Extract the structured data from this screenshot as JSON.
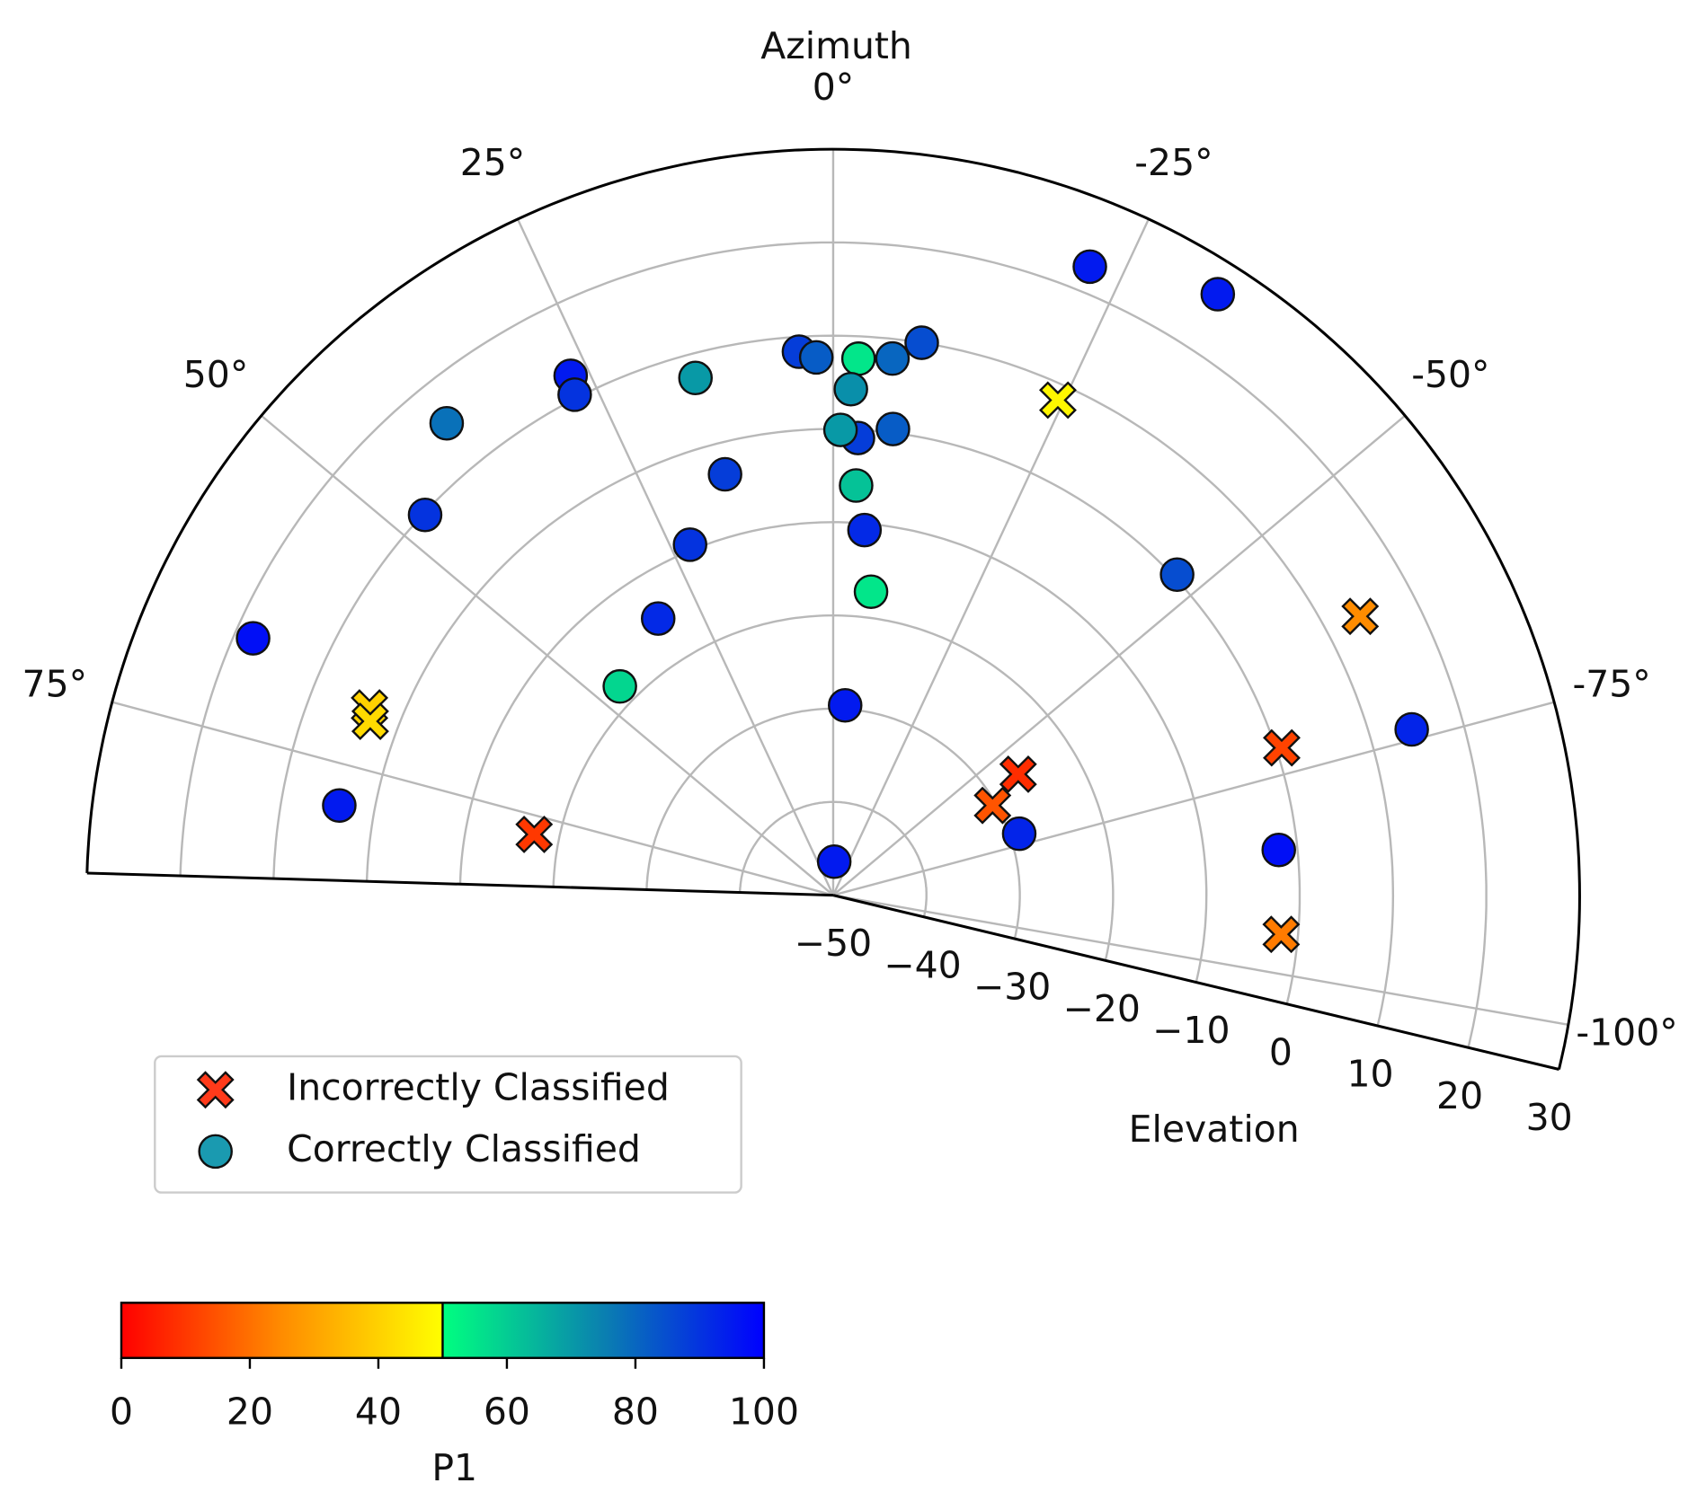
{
  "chart_data": {
    "type": "polar-scatter",
    "theta_label": "Azimuth",
    "r_label": "Elevation",
    "thetalim": [
      -103.5,
      88.3
    ],
    "thetaticks": [
      {
        "value": 0,
        "label": "0°"
      },
      {
        "value": 25,
        "label": "25°"
      },
      {
        "value": 50,
        "label": "50°"
      },
      {
        "value": 75,
        "label": "75°"
      },
      {
        "value": -25,
        "label": "-25°"
      },
      {
        "value": -50,
        "label": "-50°"
      },
      {
        "value": -75,
        "label": "-75°"
      },
      {
        "value": -100,
        "label": "-100°"
      }
    ],
    "rlim": [
      -50,
      30
    ],
    "rticks": [
      {
        "value": -50,
        "label": "−50"
      },
      {
        "value": -40,
        "label": "−40"
      },
      {
        "value": -30,
        "label": "−30"
      },
      {
        "value": -20,
        "label": "−20"
      },
      {
        "value": -10,
        "label": "−10"
      },
      0,
      10,
      20,
      30
    ],
    "grid": true,
    "series": [
      {
        "name": "Incorrectly Classified",
        "marker": "x",
        "color": "#ff3a1a",
        "azimuth": [
          -24.4,
          -62.1,
          68.0,
          69.4,
          -56.8,
          -60.6,
          -71.8,
          78.5,
          -95.0
        ],
        "elevation": [
          8.3,
          13.9,
          3.6,
          3.0,
          -26.3,
          -30.4,
          0.6,
          -17.3,
          -1.8
        ],
        "p1": [
          48,
          25,
          40,
          42,
          8,
          15,
          12,
          10,
          22
        ]
      },
      {
        "name": "Correctly Classified",
        "marker": "o",
        "color": "#1a9ab0",
        "azimuth": [
          -22.2,
          -32.6,
          -9.1,
          3.6,
          1.8,
          -2.7,
          -6.3,
          -2.0,
          26.8,
          27.3,
          14.9,
          39.3,
          -7.3,
          -3.1,
          -0.9,
          14.4,
          -3.2,
          47.0,
          22.2,
          -4.9,
          -47.0,
          -7.1,
          66.1,
          32.3,
          45.6,
          -3.6,
          -74.0,
          79.7,
          -71.7,
          -84.2,
          -1.8
        ],
        "elevation": [
          22.8,
          26.5,
          10.0,
          8.4,
          7.7,
          7.6,
          7.9,
          4.3,
          12.4,
          10.4,
          7.4,
          15.4,
          0.4,
          -0.9,
          -0.1,
          -3.4,
          -6.0,
          9.8,
          -9.4,
          -10.7,
          0.4,
          -17.2,
          18.0,
          -14.9,
          -18.0,
          -29.6,
          14.5,
          3.8,
          -29.0,
          -2.0,
          -46.4
        ],
        "p1": [
          95,
          95,
          85,
          88,
          82,
          55,
          80,
          72,
          95,
          90,
          70,
          78,
          82,
          88,
          70,
          88,
          62,
          90,
          90,
          92,
          85,
          55,
          97,
          92,
          58,
          95,
          93,
          95,
          93,
          97,
          95
        ]
      }
    ],
    "legend": "lower left",
    "colorbar": {
      "label": "P1",
      "clim": [
        0,
        100
      ],
      "ticks": [
        0,
        20,
        40,
        60,
        80,
        100
      ],
      "stops": [
        [
          0,
          "#ff0000"
        ],
        [
          25,
          "#ff8c00"
        ],
        [
          50,
          "#ffff00"
        ],
        [
          50,
          "#00ff80"
        ],
        [
          75,
          "#0a80b0"
        ],
        [
          100,
          "#0000ff"
        ]
      ]
    }
  }
}
